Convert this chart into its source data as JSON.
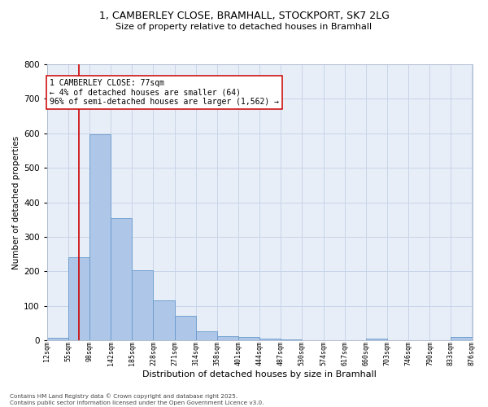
{
  "title_line1": "1, CAMBERLEY CLOSE, BRAMHALL, STOCKPORT, SK7 2LG",
  "title_line2": "Size of property relative to detached houses in Bramhall",
  "xlabel": "Distribution of detached houses by size in Bramhall",
  "ylabel": "Number of detached properties",
  "bar_color": "#aec6e8",
  "bar_edge_color": "#6699cc",
  "grid_color": "#c8d4e8",
  "background_color": "#e8eef8",
  "annotation_text": "1 CAMBERLEY CLOSE: 77sqm\n← 4% of detached houses are smaller (64)\n96% of semi-detached houses are larger (1,562) →",
  "vline_x": 77,
  "vline_color": "#cc0000",
  "annotation_box_color": "#ffffff",
  "annotation_box_edge": "#cc0000",
  "footer_line1": "Contains HM Land Registry data © Crown copyright and database right 2025.",
  "footer_line2": "Contains public sector information licensed under the Open Government Licence v3.0.",
  "bin_edges": [
    12,
    55,
    98,
    142,
    185,
    228,
    271,
    314,
    358,
    401,
    444,
    487,
    530,
    574,
    617,
    660,
    703,
    746,
    790,
    833,
    876
  ],
  "bin_counts": [
    7,
    240,
    596,
    353,
    204,
    115,
    70,
    25,
    13,
    9,
    5,
    2,
    0,
    0,
    0,
    5,
    0,
    0,
    0,
    9
  ],
  "ylim": [
    0,
    800
  ],
  "yticks": [
    0,
    100,
    200,
    300,
    400,
    500,
    600,
    700,
    800
  ],
  "fig_width": 6.0,
  "fig_height": 5.0,
  "dpi": 100
}
